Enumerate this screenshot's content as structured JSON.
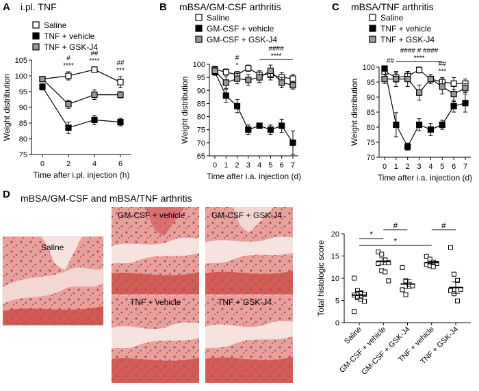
{
  "panel_letters": {
    "A": "A",
    "B": "B",
    "C": "C",
    "D": "D"
  },
  "panel_titles": {
    "A": "i.pl. TNF",
    "B": "mBSA/GM-CSF arthritis",
    "C": "mBSA/TNF arthritis",
    "D": "mBSA/GM-CSF and mBSA/TNF arthritis"
  },
  "micrograph_labels": [
    "Saline",
    "GM-CSF + vehicle",
    "GM-CSF + GSK-J4",
    "TNF + vehicle",
    "TNF + GSK-J4"
  ],
  "colors": {
    "black": "#000000",
    "gray": "#999999",
    "white": "#ffffff",
    "tissue_pink": "#e8a19b",
    "tissue_red": "#c9473f",
    "tissue_purple": "#7a5a8a"
  },
  "chart_data": [
    {
      "id": "A",
      "type": "line",
      "title": "i.pl. TNF",
      "xlabel": "Time after i.pl. injection (h)",
      "ylabel": "Weight distribution",
      "x": [
        0,
        2,
        4,
        6
      ],
      "xticks": [
        "0",
        "2",
        "4",
        "6"
      ],
      "ylim": [
        75,
        105
      ],
      "yticks": [
        75,
        80,
        85,
        90,
        95,
        100,
        105
      ],
      "legend_position": "top-left",
      "series": [
        {
          "name": "Saline",
          "marker": "open-square",
          "values": [
            99,
            100,
            102,
            98
          ],
          "err": [
            0.8,
            1.3,
            0.8,
            1.8
          ]
        },
        {
          "name": "TNF + vehicle",
          "marker": "filled-square",
          "values": [
            96.5,
            83.5,
            86,
            85.3
          ],
          "err": [
            1.0,
            1.8,
            1.5,
            1.2
          ]
        },
        {
          "name": "TNF + GSK-J4",
          "marker": "gray-square",
          "values": [
            99,
            91,
            94,
            94
          ],
          "err": [
            0.8,
            1.3,
            1.5,
            1.0
          ]
        }
      ],
      "annotations": [
        {
          "x": 2,
          "lines": [
            "#",
            "****"
          ]
        },
        {
          "x": 4,
          "lines": [
            "##",
            "****"
          ]
        },
        {
          "x": 6,
          "lines": [
            "##",
            "***"
          ]
        }
      ]
    },
    {
      "id": "B",
      "type": "line",
      "title": "mBSA/GM-CSF arthritis",
      "xlabel": "Time after i.a. injection (d)",
      "ylabel": "Weight distribution",
      "x": [
        0,
        1,
        2,
        3,
        4,
        5,
        6,
        7
      ],
      "xticks": [
        "0",
        "1",
        "2",
        "3",
        "4",
        "5",
        "6",
        "7"
      ],
      "ylim": [
        65,
        100
      ],
      "yticks": [
        65,
        70,
        75,
        80,
        85,
        90,
        95,
        100
      ],
      "legend_position": "top-left",
      "series": [
        {
          "name": "Saline",
          "marker": "open-square",
          "values": [
            98,
            97,
            96,
            98.5,
            96,
            96,
            95,
            94.5
          ],
          "err": [
            1.2,
            1.2,
            1.2,
            1.2,
            1.5,
            2,
            1.8,
            1.5
          ]
        },
        {
          "name": "GM-CSF + vehicle",
          "marker": "filled-square",
          "values": [
            97,
            88,
            84,
            75,
            76.5,
            75,
            76.5,
            70
          ],
          "err": [
            1.2,
            2.5,
            2.5,
            1.8,
            0.8,
            1.8,
            2.5,
            4.5
          ]
        },
        {
          "name": "GM-CSF + GSK-J4",
          "marker": "gray-square",
          "values": [
            97.5,
            93,
            94.5,
            94,
            95,
            97.5,
            93,
            92
          ],
          "err": [
            1.2,
            2.2,
            2,
            2,
            2,
            2.2,
            2,
            1.5
          ]
        }
      ],
      "annotations": [
        {
          "x": 2,
          "lines": [
            "#",
            "*"
          ]
        },
        {
          "x_from": 4,
          "x_to": 7,
          "lines": [
            "####",
            "****"
          ]
        }
      ]
    },
    {
      "id": "C",
      "type": "line",
      "title": "mBSA/TNF arthritis",
      "xlabel": "Time after i.a. injection (d)",
      "ylabel": "Weight distribution",
      "x": [
        0,
        1,
        2,
        3,
        4,
        5,
        6,
        7
      ],
      "xticks": [
        "0",
        "1",
        "2",
        "3",
        "4",
        "5",
        "6",
        "7"
      ],
      "ylim": [
        70,
        100
      ],
      "yticks": [
        70,
        75,
        80,
        85,
        90,
        95,
        100
      ],
      "legend_position": "top-left",
      "series": [
        {
          "name": "Saline",
          "marker": "open-square",
          "values": [
            98.5,
            96.5,
            97,
            99,
            96,
            95,
            94.5,
            94.5
          ],
          "err": [
            1,
            1.5,
            1.5,
            1,
            1,
            1.5,
            2,
            1.5
          ]
        },
        {
          "name": "TNF + vehicle",
          "marker": "filled-square",
          "values": [
            99.5,
            80.8,
            73.5,
            80.8,
            79.2,
            80.8,
            87,
            88
          ],
          "err": [
            0.5,
            4,
            1.2,
            2,
            2,
            1.5,
            2,
            3
          ]
        },
        {
          "name": "TNF + GSK-J4",
          "marker": "gray-square",
          "values": [
            96,
            96,
            96,
            91.5,
            96,
            93.5,
            91,
            93
          ],
          "err": [
            1.5,
            2.5,
            2.5,
            2.5,
            1.5,
            2.5,
            2.5,
            1.5
          ]
        }
      ],
      "annotations": [
        {
          "x": 0.5,
          "lines": [
            "##"
          ]
        },
        {
          "x_from": 1,
          "x_to": 5,
          "lines": [
            "#### # ####",
            "****"
          ]
        },
        {
          "x": 5,
          "lines": [
            "##",
            "***"
          ]
        }
      ]
    },
    {
      "id": "D",
      "type": "scatter",
      "title": "mBSA/GM-CSF and mBSA/TNF arthritis",
      "ylabel": "Total histologic score",
      "categories": [
        "Saline",
        "GM-CSF + vehicle",
        "GM-CSF + GSK-J4",
        "TNF + vehicle",
        "TNF + GSK-J4"
      ],
      "ylim": [
        0,
        20
      ],
      "yticks": [
        0,
        5,
        10,
        15,
        20
      ],
      "points": [
        [
          10,
          7.2,
          6.8,
          6.4,
          6.2,
          5.6,
          5.2,
          4.8,
          2.5
        ],
        [
          15.9,
          15.4,
          14.1,
          13.5,
          13.3,
          11.7,
          11.4,
          9.4
        ],
        [
          12.4,
          9.4,
          8.6,
          8.3,
          7.4,
          6.3
        ],
        [
          14.9,
          14.3,
          13.6,
          13.3,
          13.1,
          12.8,
          12.6
        ],
        [
          16.9,
          10.9,
          9.5,
          7.5,
          7.2,
          6.5,
          4.9
        ]
      ],
      "means": [
        6.2,
        13.8,
        8.7,
        13.5,
        7.9
      ],
      "sem": [
        0.8,
        0.8,
        1.0,
        0.3,
        1.3
      ],
      "brackets": [
        {
          "from": 0,
          "to": 1,
          "label": "*"
        },
        {
          "from": 0,
          "to": 3,
          "label": "*"
        },
        {
          "from": 1,
          "to": 2,
          "label": "#"
        },
        {
          "from": 3,
          "to": 4,
          "label": "#"
        }
      ]
    }
  ]
}
